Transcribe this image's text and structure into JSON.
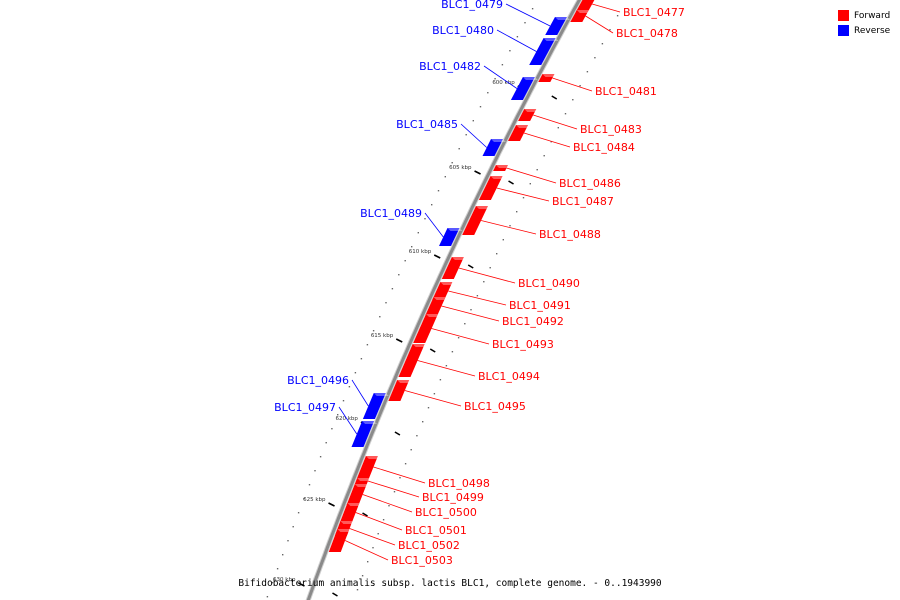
{
  "legend": [
    {
      "label": "Forward",
      "color": "#ff0000"
    },
    {
      "label": "Reverse",
      "color": "#0000ff"
    }
  ],
  "caption": "Bifidobacterium animalis subsp. lactis BLC1, complete genome. - 0..1943990",
  "colors": {
    "forward": "#ff0000",
    "reverse": "#0000ff",
    "backbone": "#8a8a8a"
  },
  "ticks": [
    "600 kbp",
    "605 kbp",
    "610 kbp",
    "615 kbp",
    "620 kbp",
    "625 kbp",
    "630 kbp"
  ],
  "genes": [
    {
      "name": "BLC1_0477",
      "strand": "forward"
    },
    {
      "name": "BLC1_0478",
      "strand": "forward"
    },
    {
      "name": "BLC1_0479",
      "strand": "reverse"
    },
    {
      "name": "BLC1_0480",
      "strand": "reverse"
    },
    {
      "name": "BLC1_0481",
      "strand": "forward"
    },
    {
      "name": "BLC1_0482",
      "strand": "reverse"
    },
    {
      "name": "BLC1_0483",
      "strand": "forward"
    },
    {
      "name": "BLC1_0484",
      "strand": "forward"
    },
    {
      "name": "BLC1_0485",
      "strand": "reverse"
    },
    {
      "name": "BLC1_0486",
      "strand": "forward"
    },
    {
      "name": "BLC1_0487",
      "strand": "forward"
    },
    {
      "name": "BLC1_0488",
      "strand": "forward"
    },
    {
      "name": "BLC1_0489",
      "strand": "reverse"
    },
    {
      "name": "BLC1_0490",
      "strand": "forward"
    },
    {
      "name": "BLC1_0491",
      "strand": "forward"
    },
    {
      "name": "BLC1_0492",
      "strand": "forward"
    },
    {
      "name": "BLC1_0493",
      "strand": "forward"
    },
    {
      "name": "BLC1_0494",
      "strand": "forward"
    },
    {
      "name": "BLC1_0495",
      "strand": "forward"
    },
    {
      "name": "BLC1_0496",
      "strand": "reverse"
    },
    {
      "name": "BLC1_0497",
      "strand": "reverse"
    },
    {
      "name": "BLC1_0498",
      "strand": "forward"
    },
    {
      "name": "BLC1_0499",
      "strand": "forward"
    },
    {
      "name": "BLC1_0500",
      "strand": "forward"
    },
    {
      "name": "BLC1_0501",
      "strand": "forward"
    },
    {
      "name": "BLC1_0502",
      "strand": "forward"
    },
    {
      "name": "BLC1_0503",
      "strand": "forward"
    }
  ]
}
